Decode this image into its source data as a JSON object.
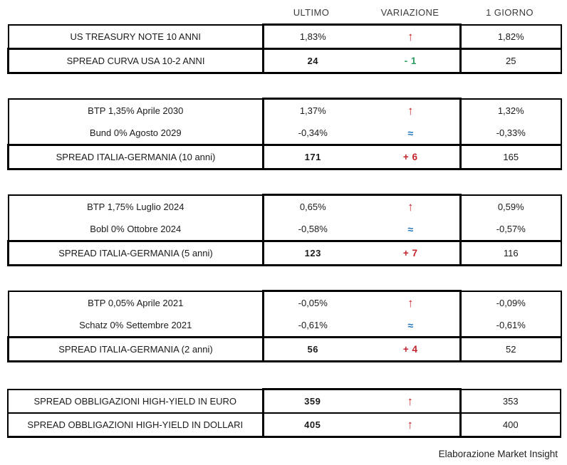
{
  "header": {
    "columns": [
      "ULTIMO",
      "VARIAZIONE",
      "1 GIORNO"
    ]
  },
  "chart_data": {
    "type": "table",
    "column_headers": [
      "ULTIMO",
      "VARIAZIONE",
      "1 GIORNO"
    ],
    "tables": [
      {
        "name": "us-treasury",
        "rows": [
          {
            "label": "US TREASURY NOTE 10 ANNI",
            "ultimo": "1,83%",
            "ultimo_bold": false,
            "variation": "↑",
            "variation_kind": "arrow",
            "variation_color": "red",
            "variation_meaning": "up",
            "giorno": "1,82%",
            "row_kind": "regular"
          },
          {
            "label": "SPREAD CURVA USA 10-2 ANNI",
            "ultimo": "24",
            "ultimo_bold": true,
            "variation": "- 1",
            "variation_kind": "number",
            "variation_color": "green",
            "variation_meaning": "down",
            "giorno": "25",
            "row_kind": "spread"
          }
        ]
      },
      {
        "name": "italy-germany-10y",
        "rows": [
          {
            "label": "BTP 1,35% Aprile 2030",
            "ultimo": "1,37%",
            "ultimo_bold": false,
            "variation": "↑",
            "variation_kind": "arrow",
            "variation_color": "red",
            "variation_meaning": "up",
            "giorno": "1,32%",
            "row_kind": "regular"
          },
          {
            "label": "Bund 0% Agosto 2029",
            "ultimo": "-0,34%",
            "ultimo_bold": false,
            "variation": "≈",
            "variation_kind": "approx",
            "variation_color": "blue",
            "variation_meaning": "flat",
            "giorno": "-0,33%",
            "row_kind": "regular"
          },
          {
            "label": "SPREAD ITALIA-GERMANIA (10 anni)",
            "ultimo": "171",
            "ultimo_bold": true,
            "variation": "+ 6",
            "variation_kind": "number",
            "variation_color": "red",
            "variation_meaning": "up",
            "giorno": "165",
            "row_kind": "spread"
          }
        ]
      },
      {
        "name": "italy-germany-5y",
        "rows": [
          {
            "label": "BTP 1,75% Luglio 2024",
            "ultimo": "0,65%",
            "ultimo_bold": false,
            "variation": "↑",
            "variation_kind": "arrow",
            "variation_color": "red",
            "variation_meaning": "up",
            "giorno": "0,59%",
            "row_kind": "regular"
          },
          {
            "label": "Bobl 0% Ottobre 2024",
            "ultimo": "-0,58%",
            "ultimo_bold": false,
            "variation": "≈",
            "variation_kind": "approx",
            "variation_color": "blue",
            "variation_meaning": "flat",
            "giorno": "-0,57%",
            "row_kind": "regular"
          },
          {
            "label": "SPREAD ITALIA-GERMANIA (5 anni)",
            "ultimo": "123",
            "ultimo_bold": true,
            "variation": "+ 7",
            "variation_kind": "number",
            "variation_color": "red",
            "variation_meaning": "up",
            "giorno": "116",
            "row_kind": "spread"
          }
        ]
      },
      {
        "name": "italy-germany-2y",
        "rows": [
          {
            "label": "BTP 0,05% Aprile 2021",
            "ultimo": "-0,05%",
            "ultimo_bold": false,
            "variation": "↑",
            "variation_kind": "arrow",
            "variation_color": "red",
            "variation_meaning": "up",
            "giorno": "-0,09%",
            "row_kind": "regular"
          },
          {
            "label": "Schatz 0% Settembre 2021",
            "ultimo": "-0,61%",
            "ultimo_bold": false,
            "variation": "≈",
            "variation_kind": "approx",
            "variation_color": "blue",
            "variation_meaning": "flat",
            "giorno": "-0,61%",
            "row_kind": "regular"
          },
          {
            "label": "SPREAD ITALIA-GERMANIA (2 anni)",
            "ultimo": "56",
            "ultimo_bold": true,
            "variation": "+ 4",
            "variation_kind": "number",
            "variation_color": "red",
            "variation_meaning": "up",
            "giorno": "52",
            "row_kind": "spread"
          }
        ]
      },
      {
        "name": "high-yield",
        "rows": [
          {
            "label": "SPREAD OBBLIGAZIONI HIGH-YIELD IN EURO",
            "ultimo": "359",
            "ultimo_bold": true,
            "variation": "↑",
            "variation_kind": "arrow",
            "variation_color": "red",
            "variation_meaning": "up",
            "giorno": "353",
            "row_kind": "hy"
          },
          {
            "label": "SPREAD OBBLIGAZIONI HIGH-YIELD IN DOLLARI",
            "ultimo": "405",
            "ultimo_bold": true,
            "variation": "↑",
            "variation_kind": "arrow",
            "variation_color": "red",
            "variation_meaning": "up",
            "giorno": "400",
            "row_kind": "hy"
          }
        ]
      }
    ]
  },
  "footer": {
    "attribution": "Elaborazione Market Insight"
  },
  "colors": {
    "up_red": "#C5232D",
    "down_green": "#2E9B62",
    "flat_blue": "#2273B6",
    "border": "#000000",
    "text": "#1B1B1B"
  }
}
